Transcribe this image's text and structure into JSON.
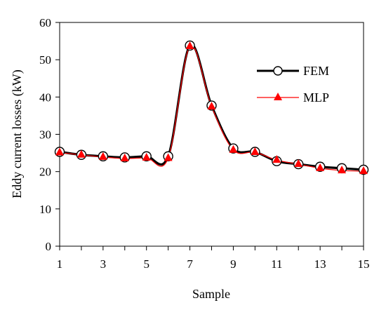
{
  "chart_data": {
    "type": "line",
    "xlabel": "Sample",
    "ylabel": "Eddy current losses (kW)",
    "xlim": [
      1,
      15
    ],
    "ylim": [
      0,
      60
    ],
    "x_tick_labels": [
      "1",
      "3",
      "5",
      "7",
      "9",
      "11",
      "13",
      "15"
    ],
    "y_tick_labels": [
      "0",
      "10",
      "20",
      "30",
      "40",
      "50",
      "60"
    ],
    "grid": false,
    "legend_position": "top-right",
    "x": [
      1,
      2,
      3,
      4,
      5,
      6,
      7,
      8,
      9,
      10,
      11,
      12,
      13,
      14,
      15
    ],
    "series": [
      {
        "name": "FEM",
        "color": "#000000",
        "marker": "open-circle",
        "values": [
          25.3,
          24.5,
          24.1,
          23.8,
          24.1,
          24.1,
          53.8,
          37.7,
          26.2,
          25.3,
          22.8,
          22.0,
          21.3,
          20.9,
          20.5
        ]
      },
      {
        "name": "MLP",
        "color": "#ff0000",
        "marker": "filled-triangle",
        "values": [
          25.1,
          24.5,
          23.9,
          23.5,
          23.7,
          23.6,
          53.6,
          37.4,
          25.8,
          25.2,
          23.1,
          22.0,
          20.9,
          20.3,
          20.1
        ]
      }
    ]
  }
}
